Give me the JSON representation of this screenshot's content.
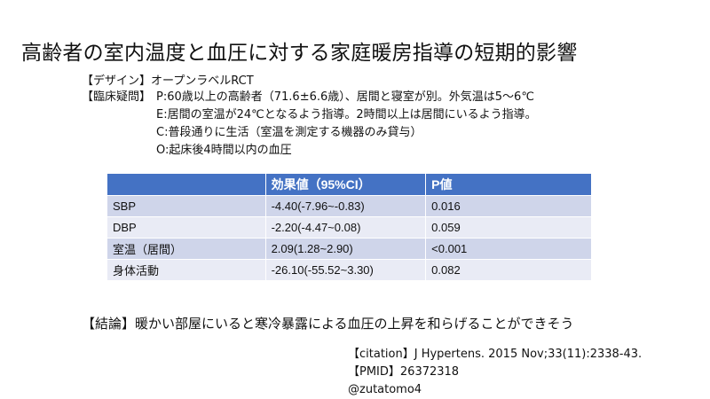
{
  "title": "高齢者の室内温度と血圧に対する家庭暖房指導の短期的影響",
  "design": {
    "label": "【デザイン】",
    "value": "オープンラベルRCT"
  },
  "clinical_question": {
    "label": "【臨床疑問】",
    "P": "P:60歳以上の高齢者（71.6±6.6歳）、居間と寝室が別。外気温は5～6℃",
    "E": "E:居間の室温が24℃となるよう指導。2時間以上は居間にいるよう指導。",
    "C": "C:普段通りに生活（室温を測定する機器のみ貸与）",
    "O": "O:起床後4時間以内の血圧"
  },
  "table": {
    "headers": [
      "",
      "効果値（95%CI）",
      "P値"
    ],
    "rows": [
      {
        "label": "SBP",
        "effect": "-4.40(-7.96~-0.83)",
        "p": "0.016"
      },
      {
        "label": "DBP",
        "effect": "-2.20(-4.47~0.08)",
        "p": "0.059"
      },
      {
        "label": "室温（居間）",
        "effect": "2.09(1.28~2.90)",
        "p": "<0.001"
      },
      {
        "label": "身体活動",
        "effect": "-26.10(-55.52~3.30)",
        "p": "0.082"
      }
    ]
  },
  "conclusion": "【結論】暖かい部屋にいると寒冷暴露による血圧の上昇を和らげることができそう",
  "citation": {
    "line1": "【citation】J Hypertens. 2015 Nov;33(11):2338-43.",
    "line2": "【PMID】26372318",
    "author": "@zutatomo4"
  }
}
